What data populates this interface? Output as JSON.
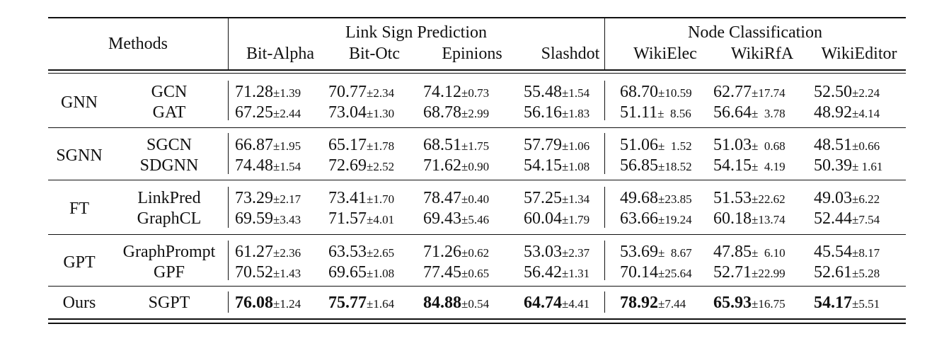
{
  "header": {
    "methods": "Methods",
    "group_link": "Link Sign Prediction",
    "group_node": "Node Classification",
    "datasets": [
      "Bit-Alpha",
      "Bit-Otc",
      "Epinions",
      "Slashdot",
      "WikiElec",
      "WikiRfA",
      "WikiEditor"
    ]
  },
  "groups": [
    {
      "category": "GNN",
      "rows": [
        {
          "method": "GCN",
          "cells": [
            {
              "v": "71.28",
              "s": "±1.39"
            },
            {
              "v": "70.77",
              "s": "±2.34"
            },
            {
              "v": "74.12",
              "s": "±0.73"
            },
            {
              "v": "55.48",
              "s": "±1.54"
            },
            {
              "v": "68.70",
              "s": "±10.59"
            },
            {
              "v": "62.77",
              "s": "±17.74"
            },
            {
              "v": "52.50",
              "s": "±2.24"
            }
          ]
        },
        {
          "method": "GAT",
          "cells": [
            {
              "v": "67.25",
              "s": "±2.44"
            },
            {
              "v": "73.04",
              "s": "±1.30"
            },
            {
              "v": "68.78",
              "s": "±2.99"
            },
            {
              "v": "56.16",
              "s": "±1.83"
            },
            {
              "v": "51.11",
              "s": "±  8.56"
            },
            {
              "v": "56.64",
              "s": "±  3.78"
            },
            {
              "v": "48.92",
              "s": "±4.14"
            }
          ]
        }
      ]
    },
    {
      "category": "SGNN",
      "rows": [
        {
          "method": "SGCN",
          "cells": [
            {
              "v": "66.87",
              "s": "±1.95"
            },
            {
              "v": "65.17",
              "s": "±1.78"
            },
            {
              "v": "68.51",
              "s": "±1.75"
            },
            {
              "v": "57.79",
              "s": "±1.06"
            },
            {
              "v": "51.06",
              "s": "±  1.52"
            },
            {
              "v": "51.03",
              "s": "±  0.68"
            },
            {
              "v": "48.51",
              "s": "±0.66"
            }
          ]
        },
        {
          "method": "SDGNN",
          "cells": [
            {
              "v": "74.48",
              "s": "±1.54"
            },
            {
              "v": "72.69",
              "s": "±2.52"
            },
            {
              "v": "71.62",
              "s": "±0.90"
            },
            {
              "v": "54.15",
              "s": "±1.08"
            },
            {
              "v": "56.85",
              "s": "±18.52"
            },
            {
              "v": "54.15",
              "s": "±  4.19"
            },
            {
              "v": "50.39",
              "s": "± 1.61"
            }
          ]
        }
      ]
    },
    {
      "category": "FT",
      "rows": [
        {
          "method": "LinkPred",
          "cells": [
            {
              "v": "73.29",
              "s": "±2.17"
            },
            {
              "v": "73.41",
              "s": "±1.70"
            },
            {
              "v": "78.47",
              "s": "±0.40"
            },
            {
              "v": "57.25",
              "s": "±1.34"
            },
            {
              "v": "49.68",
              "s": "±23.85"
            },
            {
              "v": "51.53",
              "s": "±22.62"
            },
            {
              "v": "49.03",
              "s": "±6.22"
            }
          ]
        },
        {
          "method": "GraphCL",
          "cells": [
            {
              "v": "69.59",
              "s": "±3.43"
            },
            {
              "v": "71.57",
              "s": "±4.01"
            },
            {
              "v": "69.43",
              "s": "±5.46"
            },
            {
              "v": "60.04",
              "s": "±1.79"
            },
            {
              "v": "63.66",
              "s": "±19.24"
            },
            {
              "v": "60.18",
              "s": "±13.74"
            },
            {
              "v": "52.44",
              "s": "±7.54"
            }
          ]
        }
      ]
    },
    {
      "category": "GPT",
      "rows": [
        {
          "method": "GraphPrompt",
          "cells": [
            {
              "v": "61.27",
              "s": "±2.36"
            },
            {
              "v": "63.53",
              "s": "±2.65"
            },
            {
              "v": "71.26",
              "s": "±0.62"
            },
            {
              "v": "53.03",
              "s": "±2.37"
            },
            {
              "v": "53.69",
              "s": "±  8.67"
            },
            {
              "v": "47.85",
              "s": "±  6.10"
            },
            {
              "v": "45.54",
              "s": "±8.17"
            }
          ]
        },
        {
          "method": "GPF",
          "cells": [
            {
              "v": "70.52",
              "s": "±1.43"
            },
            {
              "v": "69.65",
              "s": "±1.08"
            },
            {
              "v": "77.45",
              "s": "±0.65"
            },
            {
              "v": "56.42",
              "s": "±1.31"
            },
            {
              "v": "70.14",
              "s": "±25.64"
            },
            {
              "v": "52.71",
              "s": "±22.99"
            },
            {
              "v": "52.61",
              "s": "±5.28"
            }
          ]
        }
      ]
    },
    {
      "category": "Ours",
      "rows": [
        {
          "method": "SGPT",
          "bold": true,
          "cells": [
            {
              "v": "76.08",
              "s": "±1.24"
            },
            {
              "v": "75.77",
              "s": "±1.64"
            },
            {
              "v": "84.88",
              "s": "±0.54"
            },
            {
              "v": "64.74",
              "s": "±4.41"
            },
            {
              "v": "78.92",
              "s": "±7.44"
            },
            {
              "v": "65.93",
              "s": "±16.75"
            },
            {
              "v": "54.17",
              "s": "±5.51"
            }
          ]
        }
      ]
    }
  ]
}
